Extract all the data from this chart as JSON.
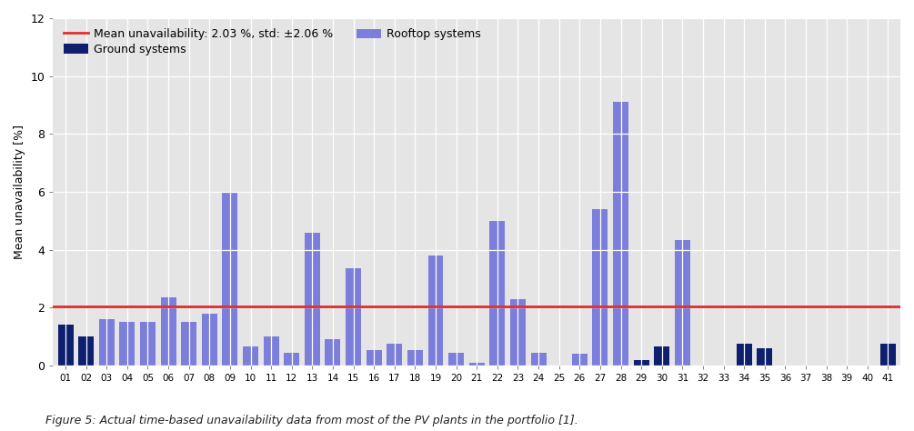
{
  "labels": [
    "01",
    "02",
    "03",
    "04",
    "05",
    "06",
    "07",
    "08",
    "09",
    "10",
    "11",
    "12",
    "13",
    "14",
    "15",
    "16",
    "17",
    "18",
    "19",
    "20",
    "21",
    "22",
    "23",
    "24",
    "25",
    "26",
    "27",
    "28",
    "29",
    "30",
    "31",
    "32",
    "33",
    "34",
    "35",
    "36",
    "37",
    "38",
    "39",
    "40",
    "41"
  ],
  "values": [
    1.4,
    1.0,
    1.6,
    1.5,
    1.5,
    2.35,
    1.5,
    1.8,
    6.0,
    0.65,
    1.0,
    0.45,
    4.6,
    0.9,
    3.35,
    0.55,
    0.75,
    0.55,
    3.8,
    0.45,
    0.1,
    5.0,
    2.3,
    0.45,
    0.0,
    0.4,
    5.4,
    9.1,
    0.2,
    0.65,
    4.35,
    0.0,
    0.0,
    0.75,
    0.6,
    0.0,
    0.0,
    0.0,
    0.0,
    0.0,
    0.75
  ],
  "is_ground": [
    true,
    true,
    false,
    false,
    false,
    false,
    false,
    false,
    false,
    false,
    false,
    false,
    false,
    false,
    false,
    false,
    false,
    false,
    false,
    false,
    false,
    false,
    false,
    false,
    false,
    false,
    false,
    false,
    true,
    true,
    false,
    false,
    false,
    true,
    true,
    false,
    false,
    false,
    false,
    false,
    true
  ],
  "rooftop_color": "#7b7fdb",
  "ground_color": "#0d1f6e",
  "mean_line_value": 2.03,
  "mean_line_color": "#e03030",
  "mean_label": "Mean unavailability: 2.03 %, std: ±2.06 %",
  "ground_label": "Ground systems",
  "rooftop_label": "Rooftop systems",
  "ylabel": "Mean unavailability [%]",
  "ylim": [
    0,
    12
  ],
  "yticks": [
    0,
    2,
    4,
    6,
    8,
    10,
    12
  ],
  "bg_color": "#e5e5e5",
  "caption": "Figure 5: Actual time-based unavailability data from most of the PV plants in the portfolio [1].",
  "fig_bg_color": "#ffffff"
}
